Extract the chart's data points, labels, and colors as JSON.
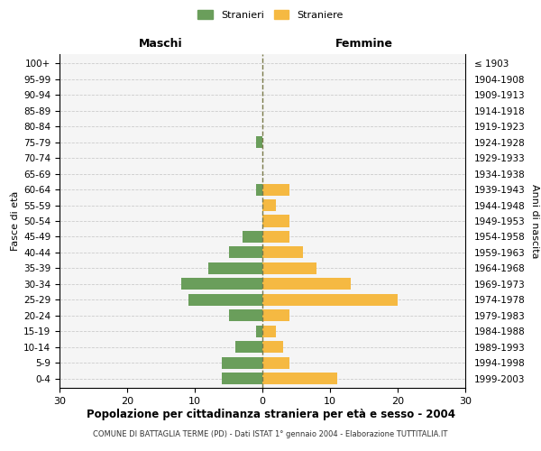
{
  "age_groups": [
    "0-4",
    "5-9",
    "10-14",
    "15-19",
    "20-24",
    "25-29",
    "30-34",
    "35-39",
    "40-44",
    "45-49",
    "50-54",
    "55-59",
    "60-64",
    "65-69",
    "70-74",
    "75-79",
    "80-84",
    "85-89",
    "90-94",
    "95-99",
    "100+"
  ],
  "birth_years": [
    "1999-2003",
    "1994-1998",
    "1989-1993",
    "1984-1988",
    "1979-1983",
    "1974-1978",
    "1969-1973",
    "1964-1968",
    "1959-1963",
    "1954-1958",
    "1949-1953",
    "1944-1948",
    "1939-1943",
    "1934-1938",
    "1929-1933",
    "1924-1928",
    "1919-1923",
    "1914-1918",
    "1909-1913",
    "1904-1908",
    "≤ 1903"
  ],
  "males": [
    6,
    6,
    4,
    1,
    5,
    11,
    12,
    8,
    5,
    3,
    0,
    0,
    1,
    0,
    0,
    1,
    0,
    0,
    0,
    0,
    0
  ],
  "females": [
    11,
    4,
    3,
    2,
    4,
    20,
    13,
    8,
    6,
    4,
    4,
    2,
    4,
    0,
    0,
    0,
    0,
    0,
    0,
    0,
    0
  ],
  "male_color": "#6a9e5b",
  "female_color": "#f5b942",
  "dashed_line_color": "#7a7a4a",
  "background_color": "#f5f5f5",
  "grid_color": "#cccccc",
  "title": "Popolazione per cittadinanza straniera per età e sesso - 2004",
  "subtitle": "COMUNE DI BATTAGLIA TERME (PD) - Dati ISTAT 1° gennaio 2004 - Elaborazione TUTTITALIA.IT",
  "xlabel_left": "Maschi",
  "xlabel_right": "Femmine",
  "ylabel_left": "Fasce di età",
  "ylabel_right": "Anni di nascita",
  "legend_male": "Stranieri",
  "legend_female": "Straniere",
  "xlim": 30,
  "bar_height": 0.75
}
